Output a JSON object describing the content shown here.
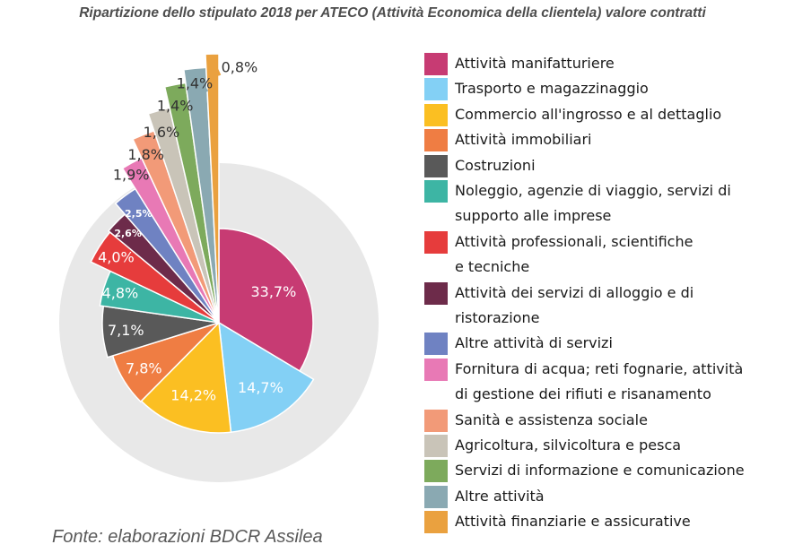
{
  "title": "Ripartizione dello stipulato 2018 per ATECO (Attività Economica della clientela) valore contratti",
  "source": "Fonte: elaborazioni BDCR Assilea",
  "chart_data": {
    "type": "pie",
    "categories": [
      "Attività manifatturiere",
      "Trasporto e magazzinaggio",
      "Commercio all'ingrosso e al dettaglio",
      "Attività immobiliari",
      "Costruzioni",
      "Noleggio, agenzie di viaggio, servizi di supporto alle imprese",
      "Attività professionali, scientifiche e tecniche",
      "Attività dei servizi di alloggio e di ristorazione",
      "Altre attività di servizi",
      "Fornitura di acqua; reti fognarie, attività di gestione dei rifiuti e risanamento",
      "Sanità e assistenza sociale",
      "Agricoltura, silvicoltura e pesca",
      "Servizi di informazione e comunicazione",
      "Altre attività",
      "Attività finanziarie e assicurative"
    ],
    "values": [
      33.7,
      14.7,
      14.2,
      7.8,
      7.1,
      4.8,
      4.0,
      2.6,
      2.5,
      1.9,
      1.8,
      1.6,
      1.4,
      1.4,
      0.8
    ],
    "labels": [
      "33,7%",
      "14,7%",
      "14,2%",
      "7,8%",
      "7,1%",
      "4,8%",
      "4,0%",
      "2,6%",
      "2,5%",
      "1,9%",
      "1,8%",
      "1,6%",
      "1,4%",
      "1,4%",
      "0,8%"
    ],
    "colors": [
      "#c73b73",
      "#83d0f5",
      "#fbbf22",
      "#ef7d43",
      "#595959",
      "#3db5a4",
      "#e63c3c",
      "#6d2b4a",
      "#6f82c2",
      "#e879b5",
      "#f29a78",
      "#c9c4b8",
      "#7daa5c",
      "#8aa9b2",
      "#eaa13f"
    ],
    "background_color": "#e8e8e8",
    "legend_position": "right"
  },
  "legend": {
    "items": [
      {
        "lines": [
          "Attività manifatturiere"
        ]
      },
      {
        "lines": [
          "Trasporto e magazzinaggio"
        ]
      },
      {
        "lines": [
          "Commercio all'ingrosso e al dettaglio"
        ]
      },
      {
        "lines": [
          "Attività immobiliari"
        ]
      },
      {
        "lines": [
          "Costruzioni"
        ]
      },
      {
        "lines": [
          "Noleggio, agenzie di viaggio, servizi di",
          "supporto alle imprese"
        ]
      },
      {
        "lines": [
          "Attività professionali, scientifiche",
          "e tecniche"
        ]
      },
      {
        "lines": [
          "Attività dei servizi di alloggio e di",
          "ristorazione"
        ]
      },
      {
        "lines": [
          "Altre attività di servizi"
        ]
      },
      {
        "lines": [
          "Fornitura di acqua; reti fognarie, attività",
          "di gestione dei rifiuti e risanamento"
        ]
      },
      {
        "lines": [
          "Sanità e assistenza sociale"
        ]
      },
      {
        "lines": [
          "Agricoltura, silvicoltura e pesca"
        ]
      },
      {
        "lines": [
          "Servizi di informazione e comunicazione"
        ]
      },
      {
        "lines": [
          "Altre attività"
        ]
      },
      {
        "lines": [
          "Attività finanziarie e assicurative"
        ]
      }
    ]
  }
}
